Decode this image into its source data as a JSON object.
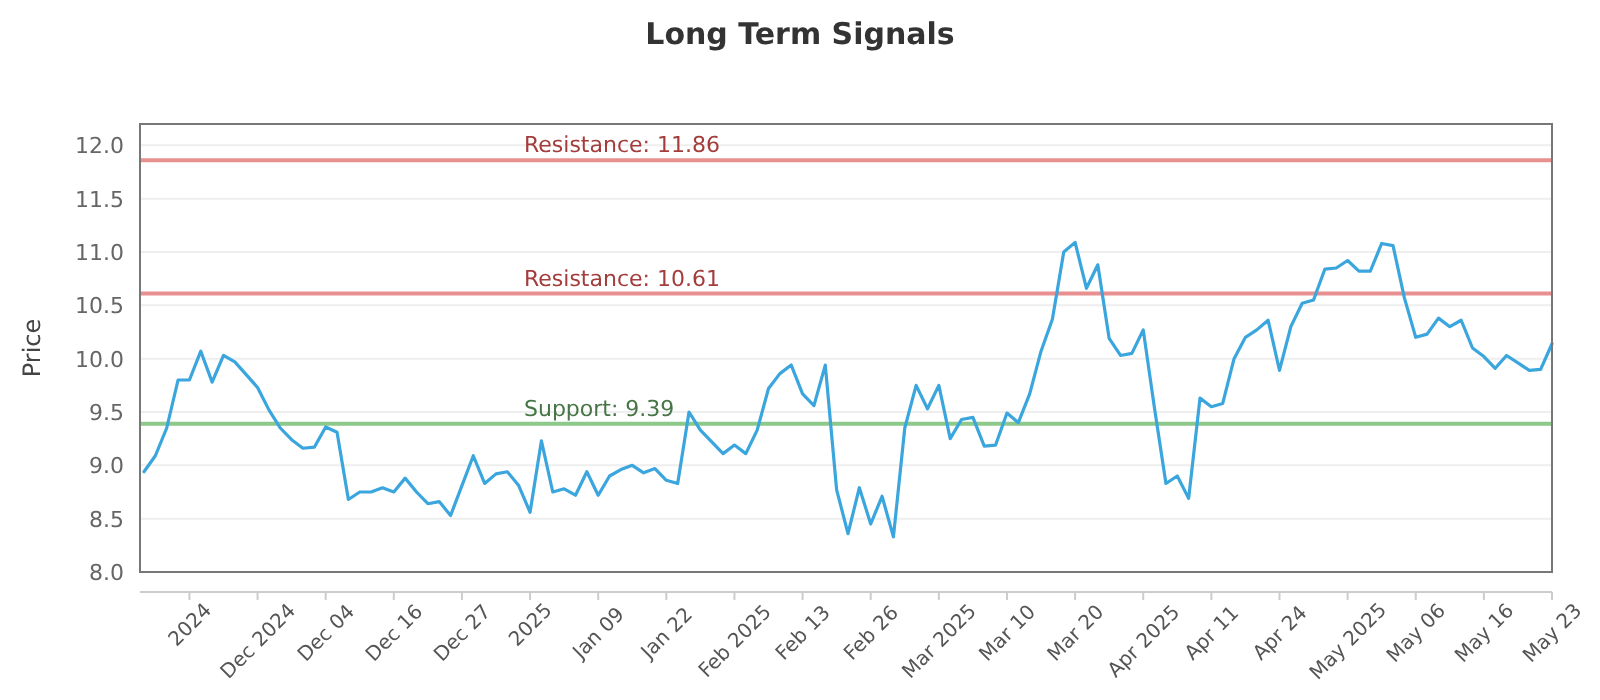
{
  "chart_data": {
    "type": "line",
    "title": "Long Term Signals",
    "ylabel": "Price",
    "categories": [
      null,
      null,
      null,
      null,
      "2024",
      null,
      null,
      null,
      null,
      null,
      "Dec 2024",
      null,
      null,
      null,
      null,
      null,
      "Dec 04",
      null,
      null,
      null,
      null,
      null,
      "Dec 16",
      null,
      null,
      null,
      null,
      null,
      "Dec 27",
      null,
      null,
      null,
      null,
      null,
      "2025",
      null,
      null,
      null,
      null,
      null,
      "Jan 09",
      null,
      null,
      null,
      null,
      null,
      "Jan 22",
      null,
      null,
      null,
      null,
      null,
      "Feb 2025",
      null,
      null,
      null,
      null,
      null,
      "Feb 13",
      null,
      null,
      null,
      null,
      null,
      "Feb 26",
      null,
      null,
      null,
      null,
      null,
      "Mar 2025",
      null,
      null,
      null,
      null,
      null,
      "Mar 10",
      null,
      null,
      null,
      null,
      null,
      "Mar 20",
      null,
      null,
      null,
      null,
      null,
      "Apr 2025",
      null,
      null,
      null,
      null,
      null,
      "Apr 11",
      null,
      null,
      null,
      null,
      null,
      "Apr 24",
      null,
      null,
      null,
      null,
      null,
      "May 2025",
      null,
      null,
      null,
      null,
      null,
      "May 06",
      null,
      null,
      null,
      null,
      null,
      "May 16",
      null,
      null,
      null,
      null,
      null,
      "May 23"
    ],
    "series": [
      {
        "color": "#3aa6dd",
        "values": [
          8.94,
          9.09,
          9.35,
          9.8,
          9.8,
          10.07,
          9.78,
          10.03,
          9.97,
          9.85,
          9.73,
          9.52,
          9.35,
          9.24,
          9.16,
          9.17,
          9.36,
          9.31,
          8.68,
          8.75,
          8.75,
          8.79,
          8.75,
          8.88,
          8.75,
          8.64,
          8.66,
          8.53,
          8.81,
          9.09,
          8.83,
          8.92,
          8.94,
          8.81,
          8.56,
          9.23,
          8.75,
          8.78,
          8.72,
          8.94,
          8.72,
          8.9,
          8.96,
          9.0,
          8.93,
          8.97,
          8.86,
          8.83,
          9.5,
          9.33,
          9.22,
          9.11,
          9.19,
          9.11,
          9.33,
          9.72,
          9.86,
          9.94,
          9.67,
          9.56,
          9.94,
          8.77,
          8.36,
          8.79,
          8.45,
          8.71,
          8.33,
          9.35,
          9.75,
          9.53,
          9.75,
          9.25,
          9.43,
          9.45,
          9.18,
          9.19,
          9.49,
          9.4,
          9.67,
          10.07,
          10.37,
          11.0,
          11.09,
          10.66,
          10.88,
          10.19,
          10.03,
          10.05,
          10.27,
          9.53,
          8.83,
          8.9,
          8.69,
          9.63,
          9.55,
          9.58,
          10.0,
          10.2,
          10.27,
          10.36,
          9.89,
          10.3,
          10.52,
          10.55,
          10.84,
          10.85,
          10.92,
          10.82,
          10.82,
          11.08,
          11.06,
          10.57,
          10.2,
          10.23,
          10.38,
          10.3,
          10.36,
          10.1,
          10.02,
          9.91,
          10.03,
          9.96,
          9.89,
          9.9,
          10.14
        ]
      }
    ],
    "ylim": [
      8,
      12.2
    ],
    "yticks": [
      {
        "value": 8,
        "label": "8.0"
      },
      {
        "value": 8.5,
        "label": "8.5"
      },
      {
        "value": 9,
        "label": "9.0"
      },
      {
        "value": 9.5,
        "label": "9.5"
      },
      {
        "value": 10,
        "label": "10.0"
      },
      {
        "value": 10.5,
        "label": "10.5"
      },
      {
        "value": 11,
        "label": "11.0"
      },
      {
        "value": 11.5,
        "label": "11.5"
      },
      {
        "value": 12,
        "label": "12.0"
      }
    ],
    "grid": "y",
    "marker": "none",
    "line_style": "solid",
    "ref_lines": [
      {
        "axis": "y",
        "value": 11.86,
        "label": "Resistance: 11.86",
        "color": "#e8908f"
      },
      {
        "axis": "y",
        "value": 10.61,
        "label": "Resistance: 10.61",
        "color": "#e8908f"
      },
      {
        "axis": "y",
        "value": 9.39,
        "label": "Support: 9.39",
        "color": "#8cc98a"
      }
    ]
  }
}
